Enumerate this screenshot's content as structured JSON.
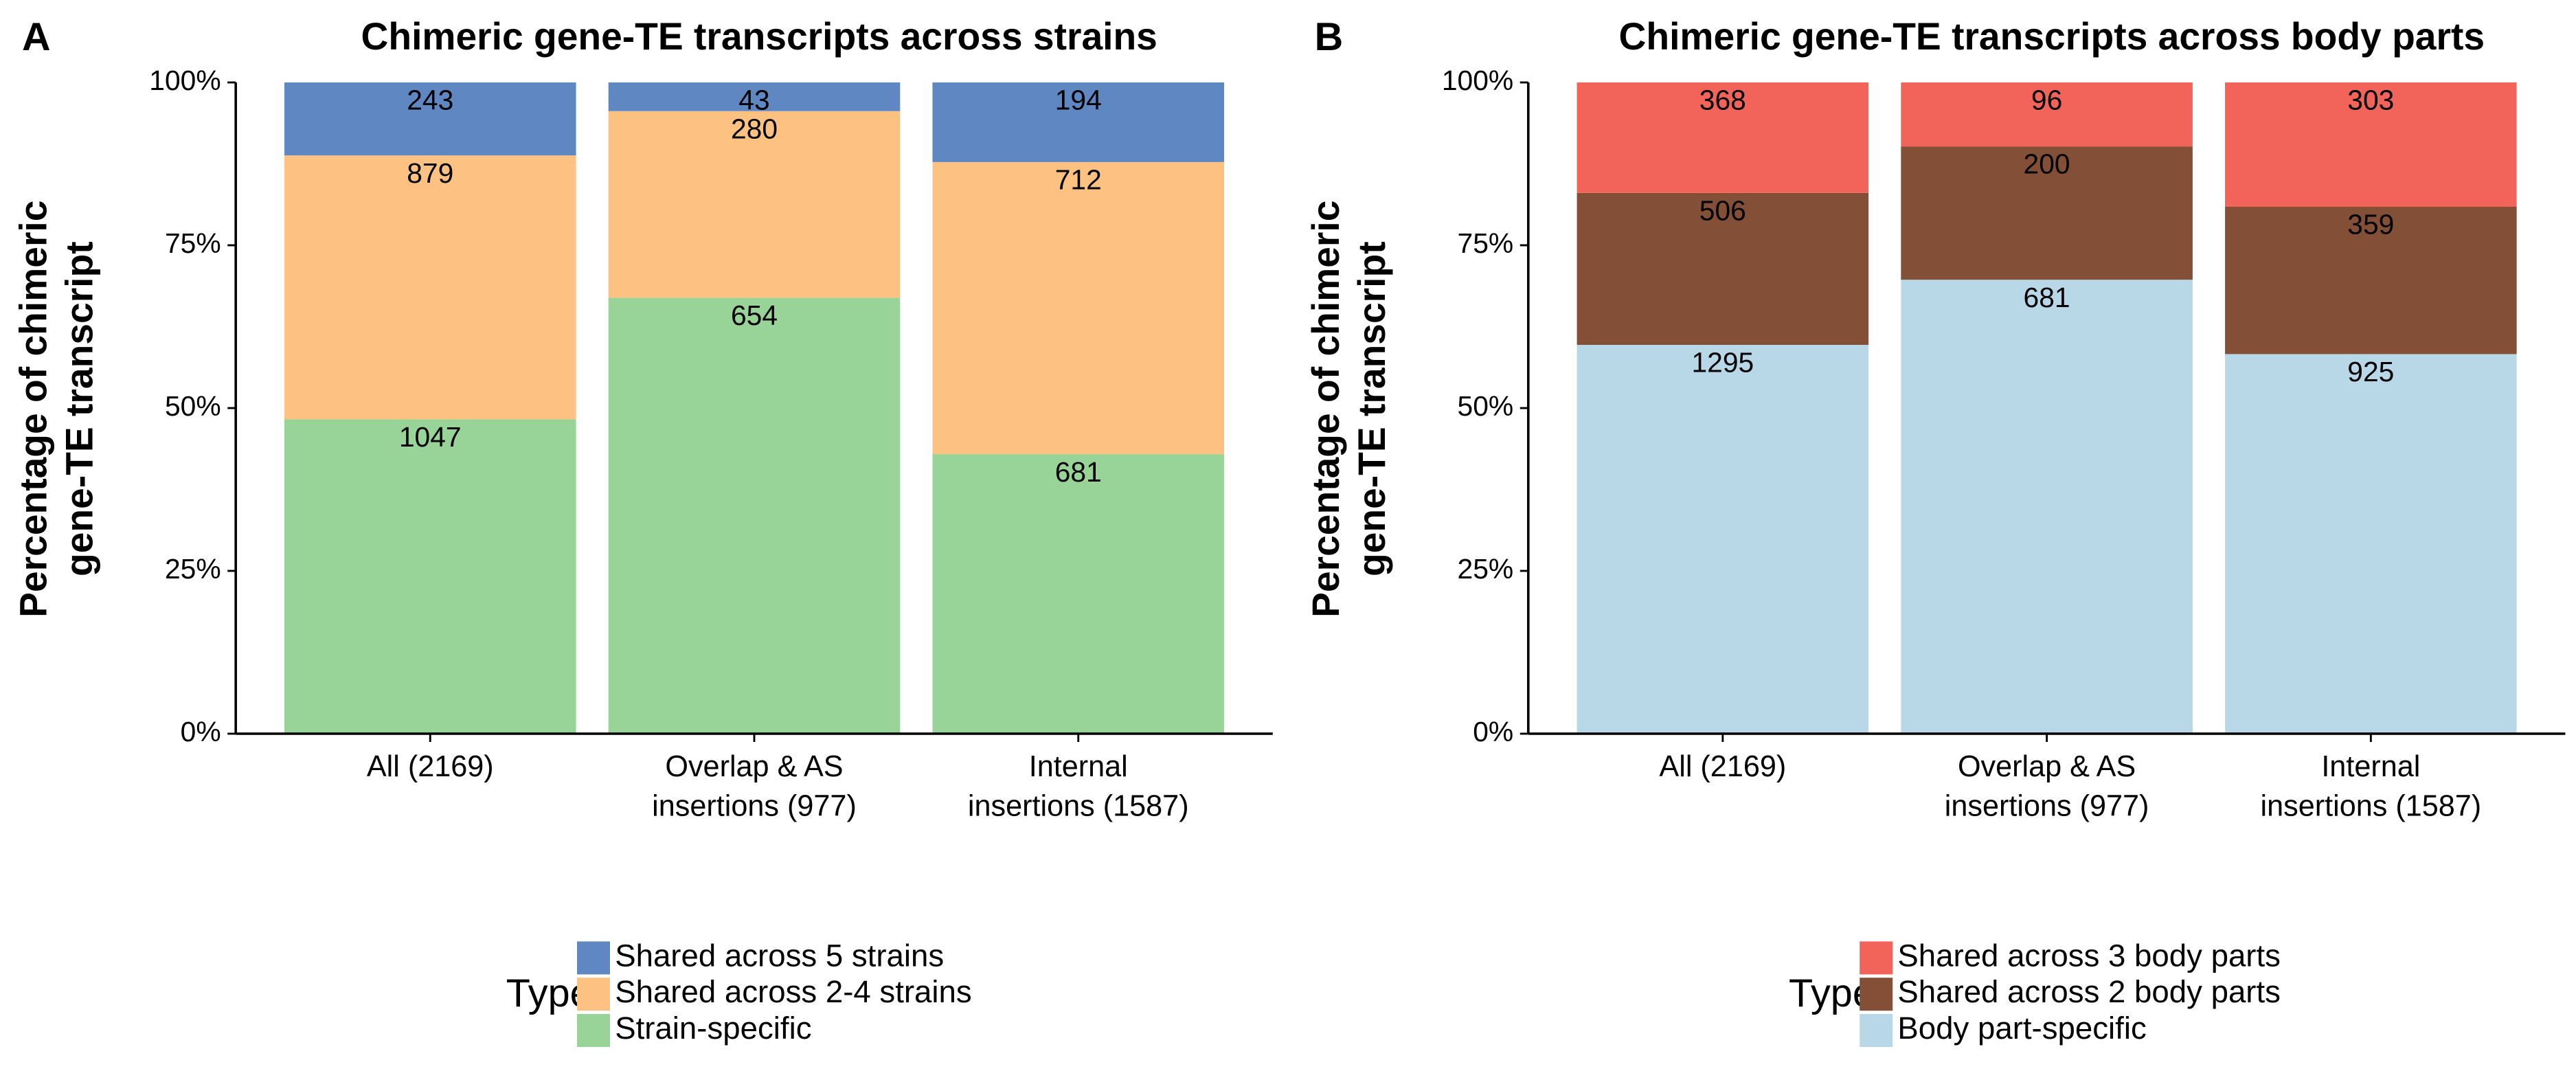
{
  "chart_data": [
    {
      "type": "bar",
      "stacking": "percent",
      "panel": "A",
      "title": "Chimeric gene-TE transcripts across strains",
      "y_label": [
        "Percentage of chimeric",
        "gene-TE transcript"
      ],
      "categories": [
        [
          "All (2169)"
        ],
        [
          "Overlap & AS",
          "insertions (977)"
        ],
        [
          "Internal",
          "insertions (1587)"
        ]
      ],
      "series": [
        {
          "name": "Shared across 5 strains",
          "color": "#5f88c2",
          "values": [
            243,
            43,
            194
          ]
        },
        {
          "name": "Shared across 2-4 strains",
          "color": "#fdc182",
          "values": [
            879,
            280,
            712
          ]
        },
        {
          "name": "Strain-specific",
          "color": "#98d497",
          "values": [
            1047,
            654,
            681
          ]
        }
      ],
      "ylim": [
        0,
        100
      ],
      "yticks": [
        {
          "value": 0,
          "label": "0%"
        },
        {
          "value": 25,
          "label": "25%"
        },
        {
          "value": 50,
          "label": "50%"
        },
        {
          "value": 75,
          "label": "75%"
        },
        {
          "value": 100,
          "label": "100%"
        }
      ],
      "legend_title": "Type",
      "legend": "bottom"
    },
    {
      "type": "bar",
      "stacking": "percent",
      "panel": "B",
      "title": "Chimeric gene-TE transcripts across body parts",
      "y_label": [
        "Percentage of chimeric",
        "gene-TE transcript"
      ],
      "categories": [
        [
          "All (2169)"
        ],
        [
          "Overlap & AS",
          "insertions (977)"
        ],
        [
          "Internal",
          "insertions (1587)"
        ]
      ],
      "series": [
        {
          "name": "Shared across 3 body parts",
          "color": "#f2645a",
          "values": [
            368,
            96,
            303
          ]
        },
        {
          "name": "Shared across 2 body parts",
          "color": "#844f37",
          "values": [
            506,
            200,
            359
          ]
        },
        {
          "name": "Body part-specific",
          "color": "#b8d8e8",
          "values": [
            1295,
            681,
            925
          ]
        }
      ],
      "ylim": [
        0,
        100
      ],
      "yticks": [
        {
          "value": 0,
          "label": "0%"
        },
        {
          "value": 25,
          "label": "25%"
        },
        {
          "value": 50,
          "label": "50%"
        },
        {
          "value": 75,
          "label": "75%"
        },
        {
          "value": 100,
          "label": "100%"
        }
      ],
      "legend_title": "Type",
      "legend": "bottom"
    }
  ]
}
